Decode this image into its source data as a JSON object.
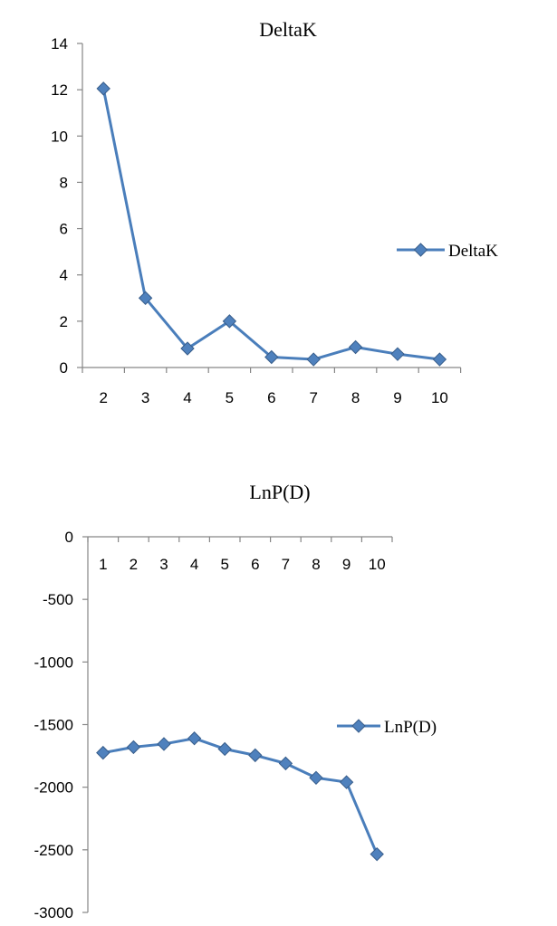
{
  "chart_data": [
    {
      "type": "line",
      "title": "DeltaK",
      "xlabel": "",
      "ylabel": "",
      "x": [
        2,
        3,
        4,
        5,
        6,
        7,
        8,
        9,
        10
      ],
      "categories": [
        "2",
        "3",
        "4",
        "5",
        "6",
        "7",
        "8",
        "9",
        "10"
      ],
      "ylim": [
        0,
        14
      ],
      "yticks": [
        0,
        2,
        4,
        6,
        8,
        10,
        12,
        14
      ],
      "ytick_labels": [
        "0",
        "2",
        "4",
        "6",
        "8",
        "10",
        "12",
        "14"
      ],
      "series": [
        {
          "name": "DeltaK",
          "values": [
            12.05,
            3.0,
            0.82,
            2.0,
            0.45,
            0.35,
            0.88,
            0.58,
            0.35
          ],
          "color": "#4a7ebb",
          "marker": "diamond"
        }
      ],
      "legend": "right",
      "grid": false
    },
    {
      "type": "line",
      "title": "LnP(D)",
      "xlabel": "",
      "ylabel": "",
      "x": [
        1,
        2,
        3,
        4,
        5,
        6,
        7,
        8,
        9,
        10
      ],
      "categories": [
        "1",
        "2",
        "3",
        "4",
        "5",
        "6",
        "7",
        "8",
        "9",
        "10"
      ],
      "ylim": [
        -3000,
        0
      ],
      "yticks": [
        0,
        -500,
        -1000,
        -1500,
        -2000,
        -2500,
        -3000
      ],
      "ytick_labels": [
        "0",
        "-500",
        "-1000",
        "-1500",
        "-2000",
        "-2500",
        "-3000"
      ],
      "series": [
        {
          "name": "LnP(D)",
          "values": [
            -1725,
            -1680,
            -1655,
            -1610,
            -1695,
            -1745,
            -1810,
            -1925,
            -1960,
            -2535
          ],
          "color": "#4a7ebb",
          "marker": "diamond"
        }
      ],
      "legend": "right",
      "grid": false
    }
  ]
}
